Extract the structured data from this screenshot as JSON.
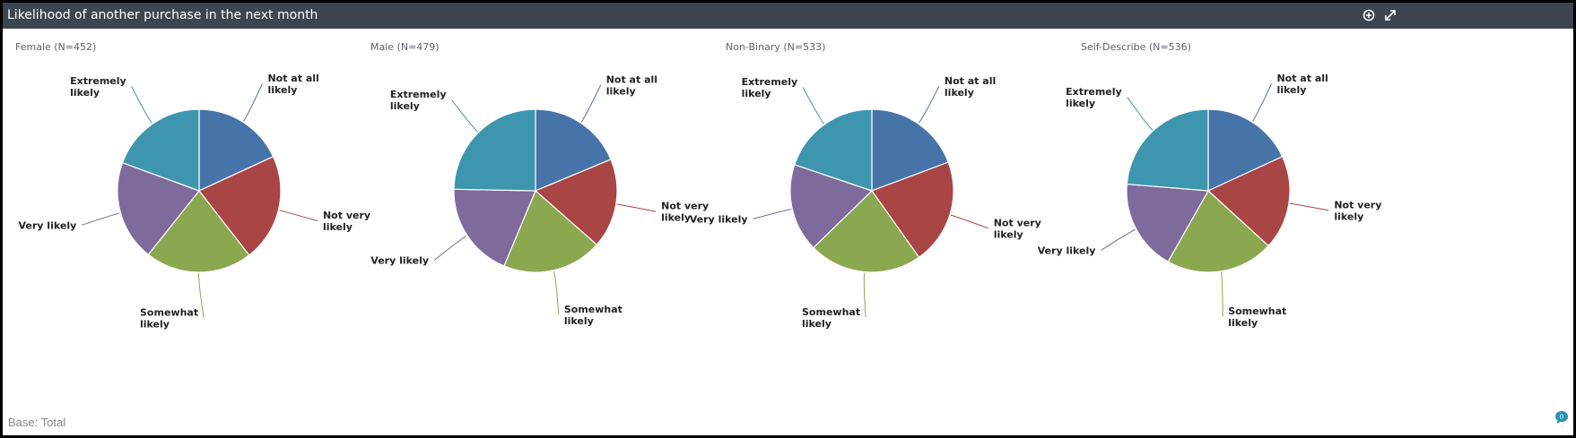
{
  "window": {
    "title": "Likelihood of another purchase in the next month",
    "add_icon": "add-circle-icon",
    "expand_icon": "expand-icon"
  },
  "footer": {
    "base_label": "Base: Total",
    "comment_icon": "comment-bubble-icon",
    "comment_count": "0"
  },
  "colors": {
    "Not at all likely": "#4673a8",
    "Not very likely": "#a94545",
    "Somewhat likely": "#8ba850",
    "Very likely": "#7f6a9c",
    "Extremely likely": "#3d96ae"
  },
  "chart_data": [
    {
      "type": "pie",
      "title": "Female (N=452)",
      "categories": [
        "Not at all likely",
        "Not very likely",
        "Somewhat likely",
        "Very likely",
        "Extremely likely"
      ],
      "values": [
        18.1,
        21.4,
        21.2,
        19.9,
        19.4
      ]
    },
    {
      "type": "pie",
      "title": "Male (N=479)",
      "categories": [
        "Not at all likely",
        "Not very likely",
        "Somewhat likely",
        "Very likely",
        "Extremely likely"
      ],
      "values": [
        18.7,
        17.8,
        19.8,
        19.0,
        24.7
      ]
    },
    {
      "type": "pie",
      "title": "Non-Binary (N=533)",
      "categories": [
        "Not at all likely",
        "Not very likely",
        "Somewhat likely",
        "Very likely",
        "Extremely likely"
      ],
      "values": [
        19.3,
        20.9,
        22.5,
        17.5,
        19.8
      ]
    },
    {
      "type": "pie",
      "title": "Self-Describe (N=536)",
      "categories": [
        "Not at all likely",
        "Not very likely",
        "Somewhat likely",
        "Very likely",
        "Extremely likely"
      ],
      "values": [
        18.1,
        18.7,
        21.4,
        18.1,
        23.7
      ]
    }
  ]
}
